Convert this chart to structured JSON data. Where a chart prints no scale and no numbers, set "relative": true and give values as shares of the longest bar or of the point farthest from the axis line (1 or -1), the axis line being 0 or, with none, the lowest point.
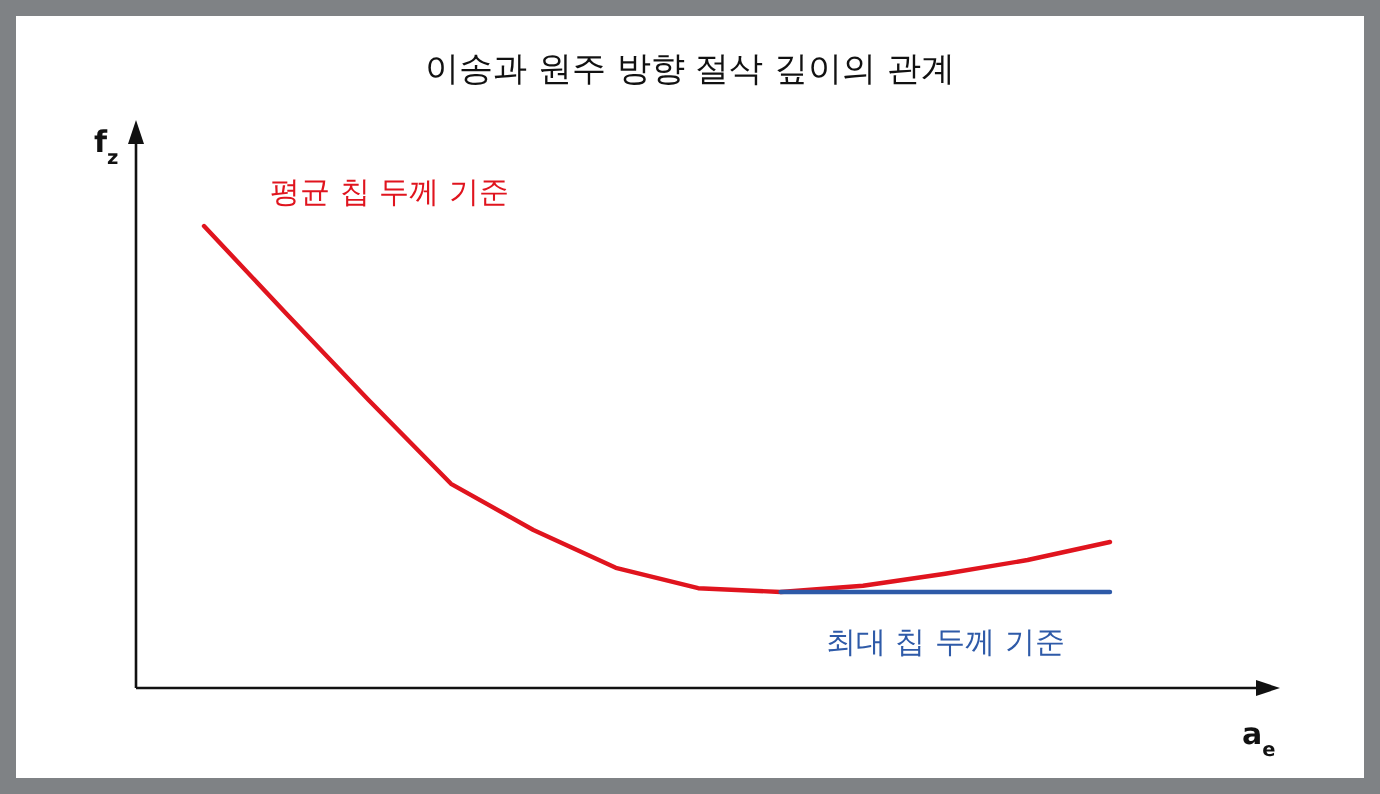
{
  "chart_data": {
    "type": "line",
    "title": "이송과 원주 방향 절삭 깊이의 관계",
    "xlabel": "a$_{e}$",
    "ylabel": "f$_{z}$",
    "relative": true,
    "categories": [
      null,
      null,
      null,
      null,
      null,
      null,
      null,
      null,
      null,
      null,
      null,
      null
    ],
    "series": [
      {
        "name": "평균 칩 두께 기준",
        "color": "#e0141e",
        "values": [
          1.0,
          0.81,
          0.623,
          0.442,
          0.342,
          0.26,
          0.216,
          0.208,
          0.221,
          0.247,
          0.277,
          0.316
        ]
      },
      {
        "name": "최대 칩 두께 기준",
        "color": "#2e5aa8",
        "values": [
          null,
          null,
          null,
          null,
          null,
          null,
          null,
          0.208,
          0.208,
          0.208,
          0.208,
          0.208
        ]
      }
    ]
  }
}
